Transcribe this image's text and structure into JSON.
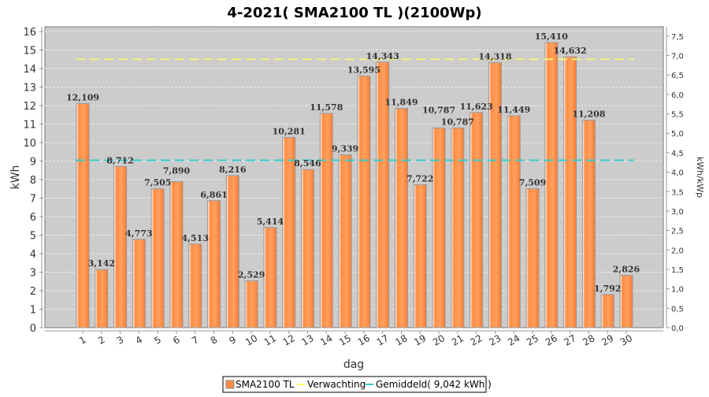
{
  "chart_data": {
    "type": "bar",
    "title": "4-2021( SMA2100 TL )(2100Wp)",
    "xlabel": "dag",
    "ylabel": "kWh",
    "ylabel_right": "kWh/kWp",
    "ylim": [
      0,
      16
    ],
    "ylim_right": [
      0,
      7.619
    ],
    "yticks": [
      "0",
      "1",
      "2",
      "3",
      "4",
      "5",
      "6",
      "7",
      "8",
      "9",
      "10",
      "11",
      "12",
      "13",
      "14",
      "15",
      "16"
    ],
    "yticks_right": [
      "0,0",
      "0,5",
      "1,0",
      "1,5",
      "2,0",
      "2,5",
      "3,0",
      "3,5",
      "4,0",
      "4,5",
      "5,0",
      "5,5",
      "6,0",
      "6,5",
      "7,0",
      "7,5"
    ],
    "categories": [
      "1",
      "2",
      "3",
      "4",
      "5",
      "6",
      "7",
      "8",
      "9",
      "10",
      "11",
      "12",
      "13",
      "14",
      "15",
      "16",
      "17",
      "18",
      "19",
      "20",
      "21",
      "22",
      "23",
      "24",
      "25",
      "26",
      "27",
      "28",
      "29",
      "30"
    ],
    "values": [
      12.109,
      3.142,
      8.712,
      4.773,
      7.505,
      7.89,
      4.513,
      6.861,
      8.216,
      2.529,
      5.414,
      10.281,
      8.546,
      11.578,
      9.339,
      13.595,
      14.343,
      11.849,
      7.722,
      10.787,
      10.787,
      11.623,
      14.318,
      11.449,
      7.509,
      15.41,
      14.632,
      11.208,
      1.792,
      2.826
    ],
    "value_labels": [
      "12,109",
      "3,142",
      "8,712",
      "4,773",
      "7,505",
      "7,890",
      "4,513",
      "6,861",
      "8,216",
      "2,529",
      "5,414",
      "10,281",
      "8,546",
      "11,578",
      "9,339",
      "13,595",
      "14,343",
      "11,849",
      "7,722",
      "10,787",
      "10,787",
      "11,623",
      "14,318",
      "11,449",
      "7,509",
      "15,410",
      "14,632",
      "11,208",
      "1,792",
      "2,826"
    ],
    "expectation": 14.5,
    "average": 9.042,
    "legend": {
      "placement": "bottom",
      "items": [
        "SMA2100 TL",
        "Verwachting",
        "Gemiddeld( 9,042 kWh )"
      ]
    },
    "grid": true,
    "colors": {
      "bar": "#ff8c42",
      "expectation": "#ffff66",
      "average": "#33cccc",
      "plot_bg": "#cccccc"
    }
  }
}
